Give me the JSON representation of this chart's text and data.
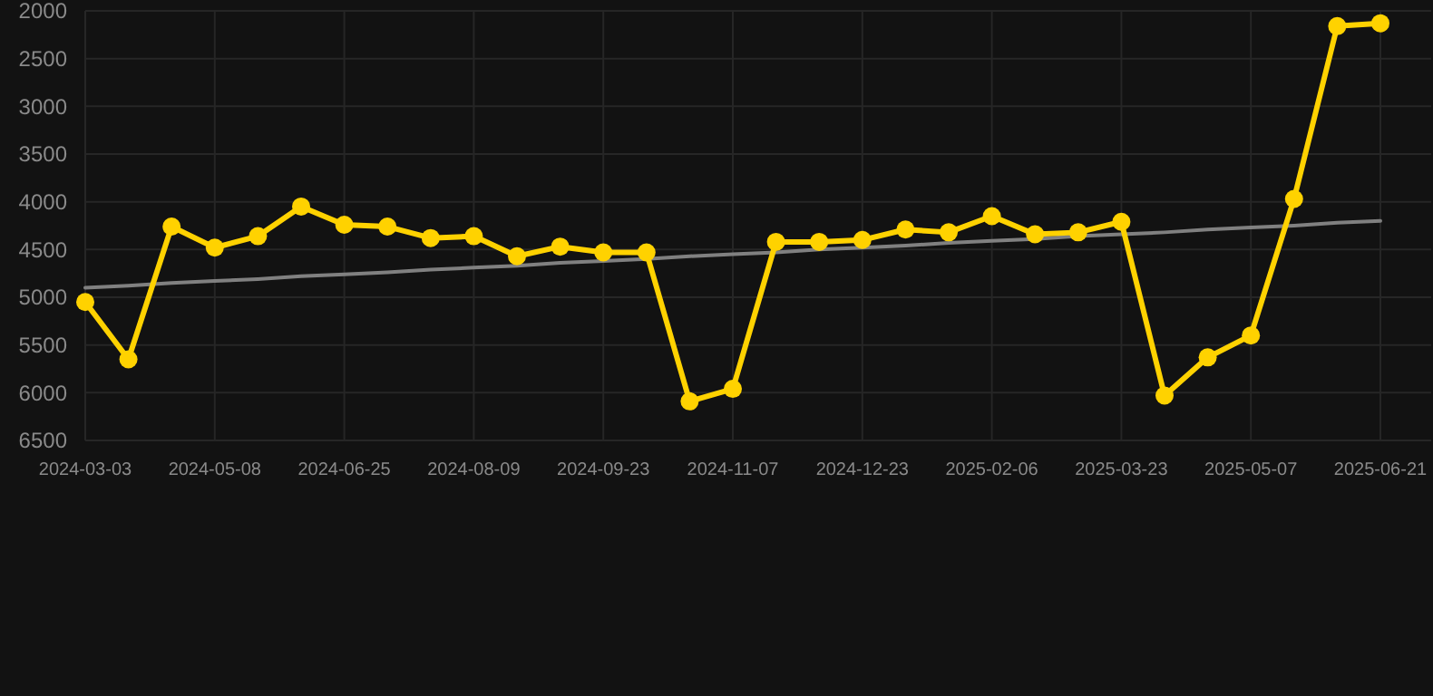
{
  "chart_data": {
    "type": "line",
    "categories": [
      "2024-03-03",
      null,
      null,
      "2024-05-08",
      null,
      null,
      "2024-06-25",
      null,
      null,
      "2024-08-09",
      null,
      null,
      "2024-09-23",
      null,
      null,
      "2024-11-07",
      null,
      null,
      "2024-12-23",
      null,
      null,
      "2025-02-06",
      null,
      null,
      "2025-03-23",
      null,
      null,
      "2025-05-07",
      null,
      null,
      "2025-06-21"
    ],
    "series": [
      {
        "color": "#ffd200",
        "marker": "circle",
        "values": [
          5050,
          5650,
          4260,
          4480,
          4360,
          4050,
          4240,
          4260,
          4380,
          4360,
          4570,
          4470,
          4530,
          4530,
          6090,
          5960,
          4420,
          4420,
          4400,
          4290,
          4320,
          4150,
          4340,
          4320,
          4210,
          6030,
          5630,
          5400,
          3970,
          2160,
          2130
        ]
      },
      {
        "type": "line",
        "color": "#808080",
        "marker": "none",
        "values": [
          4900,
          4880,
          4850,
          4830,
          4810,
          4780,
          4760,
          4740,
          4710,
          4690,
          4670,
          4640,
          4620,
          4600,
          4570,
          4550,
          4530,
          4500,
          4480,
          4460,
          4430,
          4410,
          4390,
          4360,
          4340,
          4320,
          4290,
          4270,
          4250,
          4220,
          4200
        ]
      }
    ],
    "ylim": [
      6500,
      2000
    ],
    "yticks": [
      2000,
      2500,
      3000,
      3500,
      4000,
      4500,
      5000,
      5500,
      6000,
      6500
    ],
    "grid": true
  }
}
